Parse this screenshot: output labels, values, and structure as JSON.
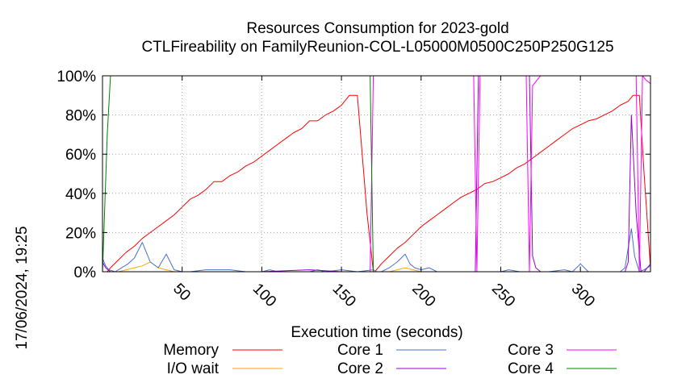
{
  "chart_data": {
    "type": "line",
    "title": "Resources Consumption for 2023-gold",
    "subtitle": "CTLFireability on FamilyReunion-COL-L05000M0500C250P250G125",
    "xlabel": "Execution time (seconds)",
    "ylabel": "",
    "side_label": "17/06/2024, 19:25",
    "xlim": [
      0,
      344
    ],
    "ylim": [
      0,
      100
    ],
    "x_ticks": [
      50,
      100,
      150,
      200,
      250,
      300
    ],
    "y_ticks": [
      0,
      20,
      40,
      60,
      80,
      100
    ],
    "y_tick_labels": [
      "0%",
      "20%",
      "40%",
      "60%",
      "80%",
      "100%"
    ],
    "grid": true,
    "legend_position": "bottom",
    "series": [
      {
        "name": "Memory",
        "color": "#ff0000",
        "x": [
          0,
          3,
          5,
          10,
          15,
          20,
          25,
          30,
          35,
          40,
          45,
          50,
          55,
          60,
          65,
          70,
          75,
          80,
          85,
          90,
          95,
          100,
          105,
          110,
          115,
          120,
          125,
          130,
          135,
          140,
          145,
          150,
          155,
          160,
          162,
          166,
          170,
          171,
          175,
          180,
          185,
          190,
          195,
          200,
          205,
          210,
          215,
          220,
          225,
          230,
          235,
          240,
          245,
          250,
          255,
          260,
          265,
          270,
          275,
          280,
          285,
          290,
          295,
          300,
          305,
          310,
          315,
          320,
          325,
          330,
          333,
          337,
          340,
          344
        ],
        "y": [
          0,
          0,
          2,
          6,
          10,
          13,
          17,
          20,
          23,
          26,
          29,
          33,
          37,
          39,
          42,
          46,
          46,
          49,
          51,
          54,
          56,
          59,
          62,
          65,
          68,
          71,
          73,
          77,
          77,
          80,
          82,
          85,
          90,
          90,
          70,
          30,
          0,
          0,
          4,
          8,
          12,
          15,
          19,
          23,
          26,
          29,
          32,
          35,
          38,
          40,
          42,
          45,
          46,
          48,
          50,
          53,
          55,
          58,
          61,
          64,
          67,
          70,
          73,
          75,
          77,
          78,
          80,
          82,
          85,
          87,
          90,
          90,
          50,
          2
        ]
      },
      {
        "name": "I/O wait",
        "color": "#ffa500",
        "x": [
          0,
          5,
          10,
          15,
          20,
          25,
          30,
          35,
          40,
          45,
          60,
          100,
          150,
          170,
          175,
          180,
          185,
          190,
          195,
          200,
          210,
          250,
          300,
          344
        ],
        "y": [
          0,
          0,
          0,
          1,
          2,
          3,
          5,
          2,
          1,
          0,
          0,
          0,
          0,
          0,
          0,
          0,
          1,
          2,
          1,
          0,
          0,
          0,
          0,
          0
        ]
      },
      {
        "name": "Core 1",
        "color": "#4a6fd1",
        "x": [
          0,
          2,
          4,
          8,
          12,
          16,
          20,
          25,
          30,
          35,
          40,
          45,
          50,
          55,
          65,
          70,
          75,
          80,
          90,
          100,
          105,
          110,
          130,
          135,
          140,
          150,
          160,
          170,
          172,
          175,
          180,
          185,
          190,
          193,
          196,
          200,
          205,
          210,
          215,
          220,
          240,
          250,
          255,
          262,
          270,
          280,
          290,
          295,
          300,
          305,
          310,
          320,
          325,
          328,
          332,
          334,
          337,
          340,
          344
        ],
        "y": [
          7,
          3,
          1,
          0,
          2,
          4,
          7,
          15,
          5,
          2,
          9,
          1,
          0,
          0,
          1,
          1,
          1,
          1,
          0,
          0,
          1,
          0,
          0,
          1,
          0,
          1,
          0,
          1,
          0,
          0,
          2,
          5,
          9,
          4,
          2,
          1,
          2,
          0,
          0,
          0,
          0,
          0,
          1,
          0,
          0,
          0,
          1,
          0,
          4,
          0,
          0,
          0,
          0,
          2,
          22,
          8,
          0,
          1,
          3
        ]
      },
      {
        "name": "Core 2",
        "color": "#9400d3",
        "x": [
          0,
          2,
          5,
          10,
          60,
          100,
          130,
          150,
          170,
          200,
          230,
          234,
          236,
          240,
          268,
          270,
          272,
          275,
          300,
          325,
          328,
          330,
          332,
          335,
          338,
          340,
          342,
          344
        ],
        "y": [
          5,
          2,
          0,
          0,
          0,
          0,
          1,
          0,
          0,
          0,
          0,
          0,
          100,
          100,
          100,
          8,
          2,
          0,
          0,
          0,
          0,
          5,
          80,
          30,
          0,
          0,
          2,
          4
        ]
      },
      {
        "name": "Core 3",
        "color": "#ff00ff",
        "x": [
          0,
          5,
          10,
          50,
          100,
          150,
          168,
          170,
          172,
          175,
          200,
          230,
          233,
          235,
          237,
          240,
          260,
          266,
          268,
          270,
          275,
          280,
          300,
          325,
          330,
          335,
          337,
          339,
          341,
          344
        ],
        "y": [
          0,
          0,
          0,
          0,
          0,
          0,
          0,
          100,
          100,
          100,
          100,
          100,
          100,
          0,
          100,
          100,
          100,
          100,
          0,
          95,
          100,
          100,
          100,
          100,
          100,
          100,
          0,
          100,
          98,
          96
        ]
      },
      {
        "name": "Core 4",
        "color": "#008000",
        "x": [
          0,
          3,
          5,
          10,
          50,
          100,
          150,
          166,
          168,
          170,
          175,
          200,
          250,
          300,
          344
        ],
        "y": [
          0,
          70,
          100,
          100,
          100,
          100,
          100,
          100,
          100,
          0,
          0,
          0,
          0,
          0,
          0
        ]
      }
    ]
  }
}
